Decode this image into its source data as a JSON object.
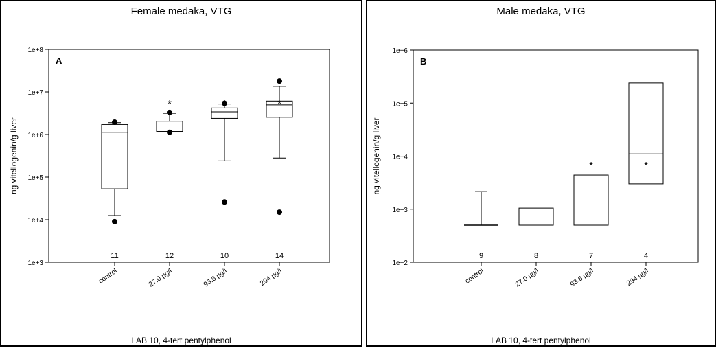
{
  "chart_data": [
    {
      "type": "box",
      "title": "Female medaka, VTG",
      "panel_label": "A",
      "ylabel": "ng vitellogenin/g liver",
      "footer": "LAB 10, 4-tert pentylphenol",
      "y_scale": "log",
      "ylim": [
        1000,
        100000000
      ],
      "y_ticks": [
        1000,
        10000,
        100000,
        1000000,
        10000000,
        100000000
      ],
      "y_tick_labels": [
        "1e+3",
        "1e+4",
        "1e+5",
        "1e+6",
        "1e+7",
        "1e+8"
      ],
      "categories": [
        "control",
        "27.0 µg/l",
        "93.6 µg/l",
        "294 µg/l"
      ],
      "n": [
        "11",
        "12",
        "10",
        "14"
      ],
      "significance": [
        "",
        "*",
        "*",
        "*"
      ],
      "boxes": [
        {
          "whisker_low": 12500,
          "q1": 53000,
          "median": 1130000,
          "q3": 1720000,
          "whisker_high": 1900000,
          "outliers": [
            9000,
            1950000
          ]
        },
        {
          "whisker_low": 1150000,
          "q1": 1180000,
          "median": 1420000,
          "q3": 2050000,
          "whisker_high": 3150000,
          "outliers": [
            1130000,
            3300000
          ]
        },
        {
          "whisker_low": 240000,
          "q1": 2400000,
          "median": 3400000,
          "q3": 4200000,
          "whisker_high": 5200000,
          "outliers": [
            26000,
            5400000
          ]
        },
        {
          "whisker_low": 280000,
          "q1": 2550000,
          "median": 4950000,
          "q3": 6100000,
          "whisker_high": 13500000,
          "outliers": [
            15000,
            18000000
          ]
        }
      ]
    },
    {
      "type": "box",
      "title": "Male medaka, VTG",
      "panel_label": "B",
      "ylabel": "ng vitellogenin/g liver",
      "footer": "LAB 10, 4-tert pentylphenol",
      "y_scale": "log",
      "ylim": [
        100,
        1000000
      ],
      "y_ticks": [
        100,
        1000,
        10000,
        100000,
        1000000
      ],
      "y_tick_labels": [
        "1e+2",
        "1e+3",
        "1e+4",
        "1e+5",
        "1e+6"
      ],
      "categories": [
        "control",
        "27.0 µg/l",
        "93.6 µg/l",
        "294 µg/l"
      ],
      "n": [
        "9",
        "8",
        "7",
        "4"
      ],
      "significance": [
        "",
        "",
        "*",
        "*"
      ],
      "boxes": [
        {
          "whisker_low": 500,
          "q1": 500,
          "median": 500,
          "q3": 500,
          "whisker_high": 2150,
          "outliers": []
        },
        {
          "whisker_low": 500,
          "q1": 500,
          "median": 500,
          "q3": 1050,
          "whisker_high": 1050,
          "outliers": []
        },
        {
          "whisker_low": 500,
          "q1": 500,
          "median": 500,
          "q3": 4400,
          "whisker_high": 4400,
          "outliers": []
        },
        {
          "whisker_low": 3000,
          "q1": 3000,
          "median": 11000,
          "q3": 240000,
          "whisker_high": 240000,
          "outliers": []
        }
      ]
    }
  ]
}
